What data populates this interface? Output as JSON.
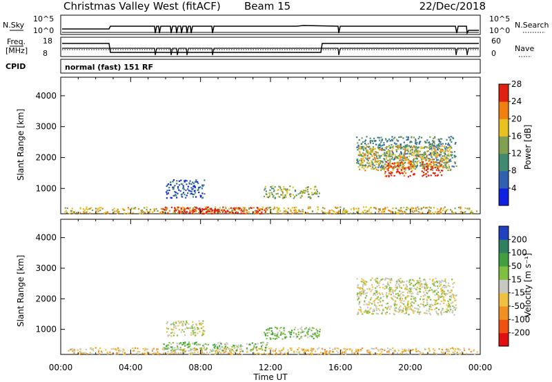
{
  "header": {
    "station": "Christmas Valley West (fitACF)",
    "beam": "Beam 15",
    "date": "22/Dec/2018"
  },
  "params": {
    "nsky_label": "N.Sky",
    "nsky_ticks": [
      "10^5",
      "10^0"
    ],
    "nsearch_label": "N.Search",
    "nsearch_ticks": [
      "10^5",
      "10^0"
    ],
    "freq_label_1": "Freq.",
    "freq_label_2": "[MHz]",
    "freq_ticks": [
      "18",
      "8"
    ],
    "nave_label": "Nave",
    "nave_ticks": [
      "60",
      "0"
    ],
    "cpid_label": "CPID",
    "cpid_value": "normal (fast) 151 RF"
  },
  "chart_data": [
    {
      "type": "heatmap",
      "name": "power-panel",
      "ylabel": "Slant Range [km]",
      "xlabel": "Time UT",
      "x_ticks": [
        "00:00",
        "04:00",
        "08:00",
        "12:00",
        "16:00",
        "20:00",
        "00:00"
      ],
      "xlim_hours": [
        0,
        24
      ],
      "y_ticks": [
        1000,
        2000,
        3000,
        4000
      ],
      "ylim": [
        180,
        4600
      ],
      "colorbar": {
        "label": "Power [dB]",
        "ticks": [
          "4",
          "8",
          "12",
          "16",
          "20",
          "24",
          "28"
        ],
        "colors": [
          "#1020e0",
          "#3060b0",
          "#3f8a70",
          "#80a050",
          "#e8c020",
          "#f08010",
          "#e02010"
        ]
      },
      "regions": [
        {
          "t0": 0.2,
          "t1": 23.8,
          "r0": 200,
          "r1": 420,
          "level": 4
        },
        {
          "t0": 5.8,
          "t1": 11.8,
          "r0": 200,
          "r1": 420,
          "level": 6
        },
        {
          "t0": 7.8,
          "t1": 9.0,
          "r0": 200,
          "r1": 380,
          "level": 7
        },
        {
          "t0": 6.0,
          "t1": 8.2,
          "r0": 700,
          "r1": 1300,
          "level": 1
        },
        {
          "t0": 11.6,
          "t1": 14.8,
          "r0": 700,
          "r1": 1100,
          "level": 3
        },
        {
          "t0": 16.9,
          "t1": 22.6,
          "r0": 1700,
          "r1": 2700,
          "level": 2
        },
        {
          "t0": 17.0,
          "t1": 22.3,
          "r0": 1600,
          "r1": 2400,
          "level": 4
        },
        {
          "t0": 18.5,
          "t1": 20.3,
          "r0": 1400,
          "r1": 1900,
          "level": 6
        },
        {
          "t0": 20.6,
          "t1": 21.8,
          "r0": 1400,
          "r1": 1900,
          "level": 6
        }
      ]
    },
    {
      "type": "heatmap",
      "name": "velocity-panel",
      "ylabel": "Slant Range [km]",
      "xlabel": "Time UT",
      "x_ticks": [
        "00:00",
        "04:00",
        "08:00",
        "12:00",
        "16:00",
        "20:00",
        "00:00"
      ],
      "xlim_hours": [
        0,
        24
      ],
      "y_ticks": [
        1000,
        2000,
        3000,
        4000
      ],
      "ylim": [
        180,
        4600
      ],
      "colorbar": {
        "label": "Velocity [m s⁻¹]",
        "ticks": [
          "200",
          "100",
          "50",
          "15",
          "-15",
          "-50",
          "-100",
          "-200"
        ],
        "colors": [
          "#2040c0",
          "#308060",
          "#40a040",
          "#80c040",
          "#c8c8c0",
          "#f0c040",
          "#f09020",
          "#f05010",
          "#e01010"
        ]
      },
      "regions": [
        {
          "t0": 0.2,
          "t1": 23.8,
          "r0": 200,
          "r1": 420,
          "level": 5
        },
        {
          "t0": 5.8,
          "t1": 11.8,
          "r0": 300,
          "r1": 600,
          "level": 3
        },
        {
          "t0": 6.0,
          "t1": 8.2,
          "r0": 800,
          "r1": 1300,
          "level": 4
        },
        {
          "t0": 11.6,
          "t1": 14.8,
          "r0": 700,
          "r1": 1100,
          "level": 3
        },
        {
          "t0": 16.9,
          "t1": 22.6,
          "r0": 1500,
          "r1": 2700,
          "level": 4
        }
      ]
    }
  ],
  "xlabel": "Time UT"
}
